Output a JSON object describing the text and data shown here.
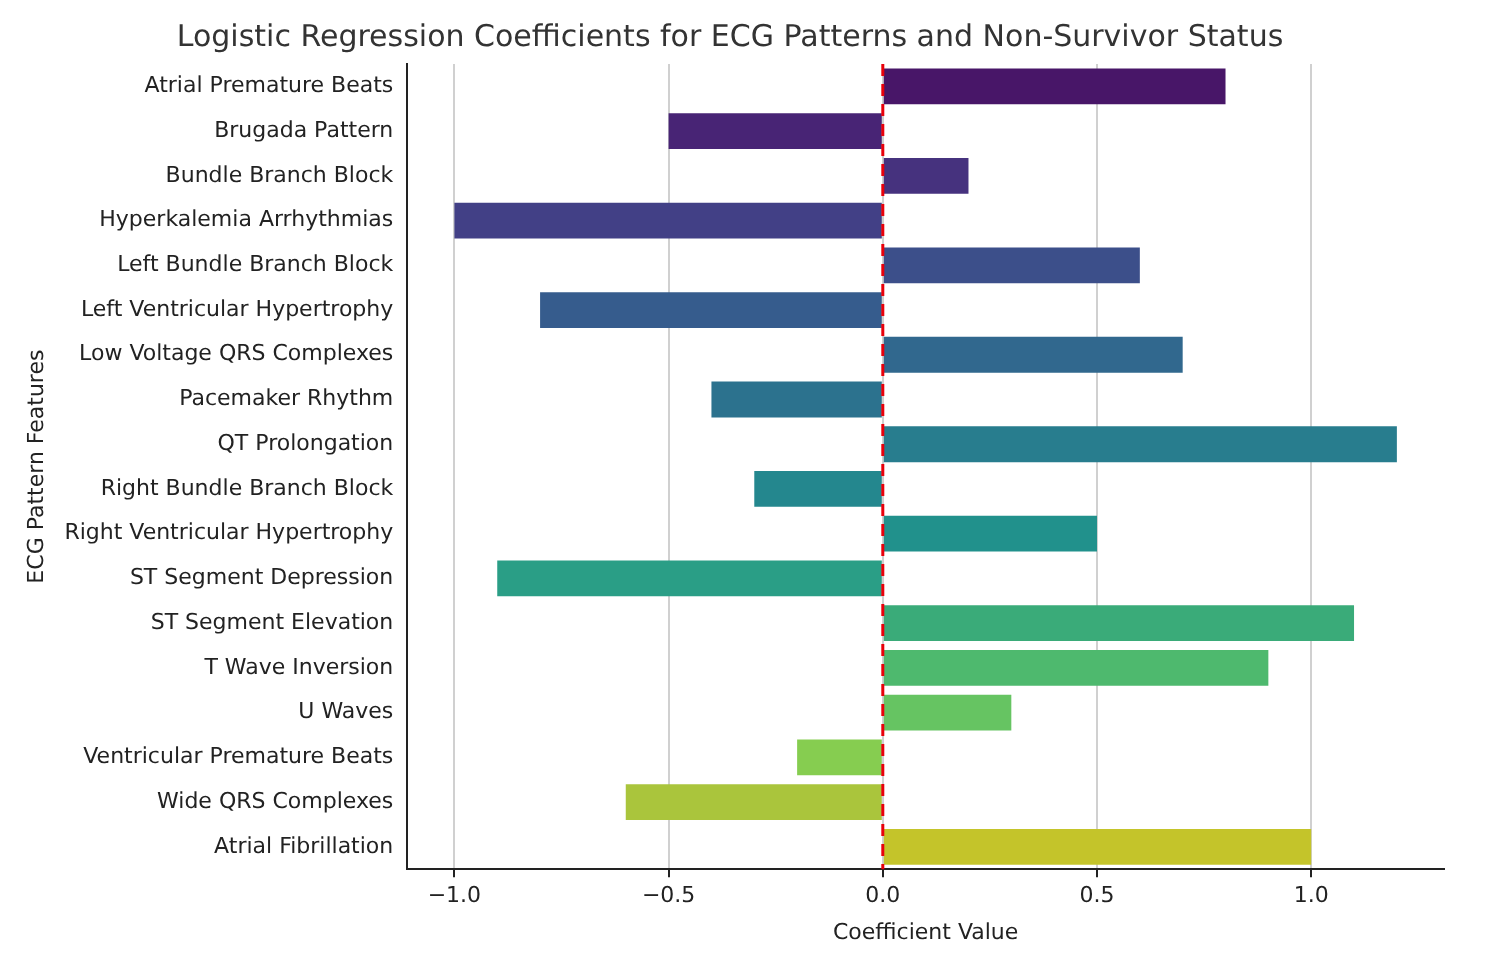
{
  "chart_data": {
    "type": "bar",
    "orientation": "horizontal",
    "title": "Logistic Regression Coefficients for ECG Patterns and Non-Survivor Status",
    "xlabel": "Coefficient Value",
    "ylabel": "ECG Pattern Features",
    "categories": [
      "Atrial Premature Beats",
      "Brugada Pattern",
      "Bundle Branch Block",
      "Hyperkalemia Arrhythmias",
      "Left Bundle Branch Block",
      "Left Ventricular Hypertrophy",
      "Low Voltage QRS Complexes",
      "Pacemaker Rhythm",
      "QT Prolongation",
      "Right Bundle Branch Block",
      "Right Ventricular Hypertrophy",
      "ST Segment Depression",
      "ST Segment Elevation",
      "T Wave Inversion",
      "U Waves",
      "Ventricular Premature Beats",
      "Wide QRS Complexes",
      "Atrial Fibrillation"
    ],
    "values": [
      0.8,
      -0.5,
      0.2,
      -1.0,
      0.6,
      -0.8,
      0.7,
      -0.4,
      1.2,
      -0.3,
      0.5,
      -0.9,
      1.1,
      0.9,
      0.3,
      -0.2,
      -0.6,
      1.0
    ],
    "colors": [
      "#481668",
      "#482475",
      "#46327e",
      "#424086",
      "#3c4f8a",
      "#365c8d",
      "#31688e",
      "#2c728e",
      "#287d8e",
      "#24878e",
      "#21918c",
      "#2a9e86",
      "#3aab79",
      "#4eb96e",
      "#66c462",
      "#86cd50",
      "#aac53c",
      "#c4c42a"
    ],
    "xlim": [
      -1.11,
      1.31
    ],
    "xticks": [
      {
        "value": -1,
        "label": "−1.0"
      },
      {
        "value": -0.5,
        "label": "−0.5"
      },
      {
        "value": 0,
        "label": "0.0"
      },
      {
        "value": 0.5,
        "label": "0.5"
      },
      {
        "value": 1,
        "label": "1.0"
      }
    ],
    "ref_lines": [
      {
        "axis": "x",
        "value": 0,
        "color": "#e8000b",
        "line_style": "dashed"
      }
    ],
    "grid": "x",
    "legend": false
  }
}
